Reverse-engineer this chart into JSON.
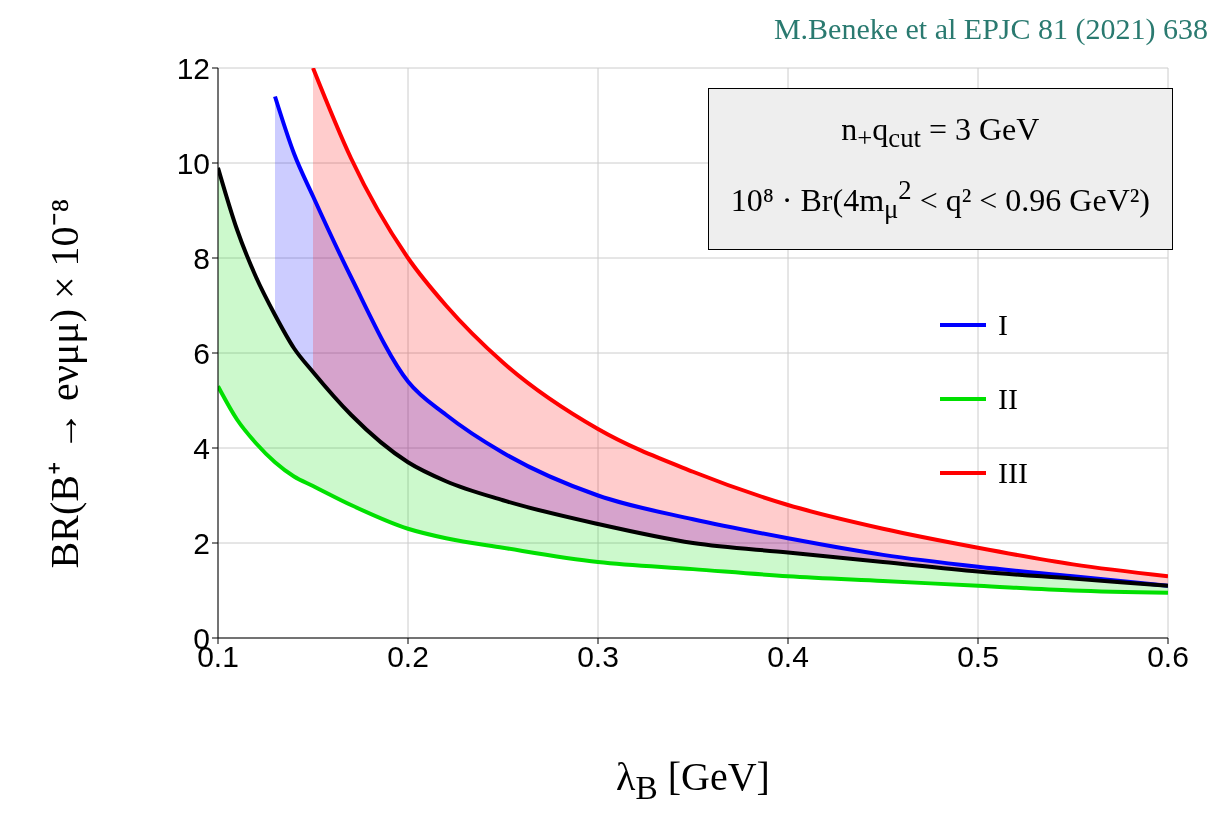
{
  "chart_data": {
    "type": "line",
    "title": "M.Beneke et al EPJC 81 (2021) 638",
    "xlabel": "λ$_{B}$ [GeV]",
    "ylabel": "BR(B⁺ → eνμμ) × 10⁻⁸",
    "annotations": [
      "n$_{+}$q$_{cut}$ = 3 GeV",
      "10⁸ · Br(4m$_{μ}$$^{2}$ < q² < 0.96 GeV²)"
    ],
    "x": [
      0.1,
      0.11,
      0.12,
      0.13,
      0.14,
      0.15,
      0.17,
      0.2,
      0.22,
      0.25,
      0.3,
      0.35,
      0.4,
      0.45,
      0.5,
      0.55,
      0.6
    ],
    "series": [
      {
        "name": "I",
        "color": "#0000ff",
        "values": [
          null,
          null,
          null,
          11.4,
          10.2,
          9.3,
          7.6,
          5.4,
          4.7,
          3.9,
          3.0,
          2.5,
          2.1,
          1.75,
          1.5,
          1.3,
          1.1
        ],
        "lower": [
          null,
          null,
          null,
          6.8,
          6.1,
          5.6,
          4.7,
          3.7,
          3.3,
          2.9,
          2.4,
          2.0,
          1.8,
          1.6,
          1.4,
          1.25,
          1.1
        ],
        "upper": [
          null,
          null,
          null,
          11.4,
          10.2,
          9.3,
          7.6,
          5.4,
          4.7,
          3.9,
          3.0,
          2.5,
          2.1,
          1.75,
          1.5,
          1.3,
          1.1
        ]
      },
      {
        "name": "II",
        "color": "#00e000",
        "values": [
          5.3,
          4.6,
          4.1,
          3.7,
          3.4,
          3.2,
          2.8,
          2.3,
          2.1,
          1.9,
          1.6,
          1.45,
          1.3,
          1.2,
          1.1,
          1.0,
          0.95
        ],
        "lower": [
          5.3,
          4.6,
          4.1,
          3.7,
          3.4,
          3.2,
          2.8,
          2.3,
          2.1,
          1.9,
          1.6,
          1.45,
          1.3,
          1.2,
          1.1,
          1.0,
          0.95
        ],
        "upper": [
          9.9,
          8.6,
          7.6,
          6.8,
          6.1,
          5.6,
          4.7,
          3.7,
          3.3,
          2.9,
          2.4,
          2.0,
          1.8,
          1.6,
          1.4,
          1.25,
          1.1
        ]
      },
      {
        "name": "III",
        "color": "#ff0000",
        "values": [
          null,
          null,
          null,
          null,
          null,
          12.0,
          10.1,
          8.0,
          7.0,
          5.8,
          4.4,
          3.5,
          2.8,
          2.3,
          1.9,
          1.55,
          1.3
        ],
        "lower": [
          null,
          null,
          null,
          null,
          null,
          5.6,
          4.7,
          3.7,
          3.3,
          2.9,
          2.4,
          2.0,
          1.8,
          1.6,
          1.4,
          1.25,
          1.1
        ],
        "upper": [
          null,
          null,
          null,
          null,
          null,
          12.0,
          10.1,
          8.0,
          7.0,
          5.8,
          4.4,
          3.5,
          2.8,
          2.3,
          1.9,
          1.55,
          1.3
        ]
      },
      {
        "color": "#000000",
        "values": [
          9.9,
          8.6,
          7.6,
          6.8,
          6.1,
          5.6,
          4.7,
          3.7,
          3.3,
          2.9,
          2.4,
          2.0,
          1.8,
          1.6,
          1.4,
          1.25,
          1.1
        ]
      }
    ],
    "xlim": [
      0.1,
      0.6
    ],
    "xticks": [
      0.1,
      0.2,
      0.3,
      0.4,
      0.5,
      0.6
    ],
    "ylim": [
      0,
      12
    ],
    "yticks": [
      0,
      2,
      4,
      6,
      8,
      10,
      12
    ],
    "grid": true,
    "legend": "right",
    "line_style": "solid"
  }
}
